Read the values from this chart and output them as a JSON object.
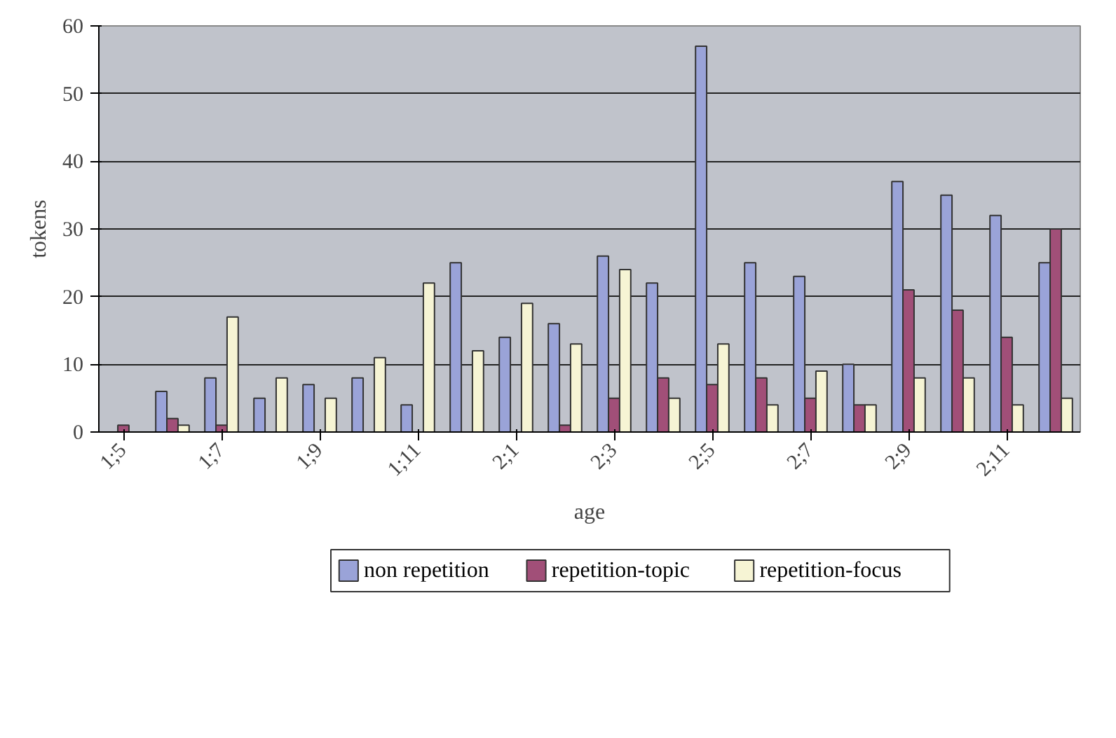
{
  "chart_data": {
    "type": "bar",
    "xlabel": "age",
    "ylabel": "tokens",
    "categories": [
      "1;5",
      null,
      "1;7",
      null,
      "1;9",
      null,
      "1;11",
      null,
      "2;1",
      null,
      "2;3",
      null,
      "2;5",
      null,
      "2;7",
      null,
      "2;9",
      null,
      "2;11",
      null
    ],
    "series": [
      {
        "name": "non repetition",
        "color": "#9aa3d8",
        "values": [
          0,
          6,
          8,
          5,
          7,
          8,
          4,
          25,
          14,
          16,
          26,
          22,
          57,
          25,
          23,
          10,
          37,
          35,
          32,
          25
        ]
      },
      {
        "name": "repetition-topic",
        "color": "#a14f78",
        "values": [
          1,
          2,
          1,
          0,
          0,
          0,
          0,
          0,
          0,
          1,
          5,
          8,
          7,
          8,
          5,
          4,
          21,
          18,
          14,
          30
        ]
      },
      {
        "name": "repetition-focus",
        "color": "#f6f4d4",
        "values": [
          0,
          1,
          17,
          8,
          5,
          11,
          22,
          12,
          19,
          13,
          24,
          5,
          13,
          4,
          9,
          4,
          8,
          8,
          4,
          5
        ]
      }
    ],
    "ylim": [
      0,
      60
    ],
    "yticks": [
      0,
      10,
      20,
      30,
      40,
      50,
      60
    ],
    "grid": "y",
    "legend": "bottom"
  }
}
